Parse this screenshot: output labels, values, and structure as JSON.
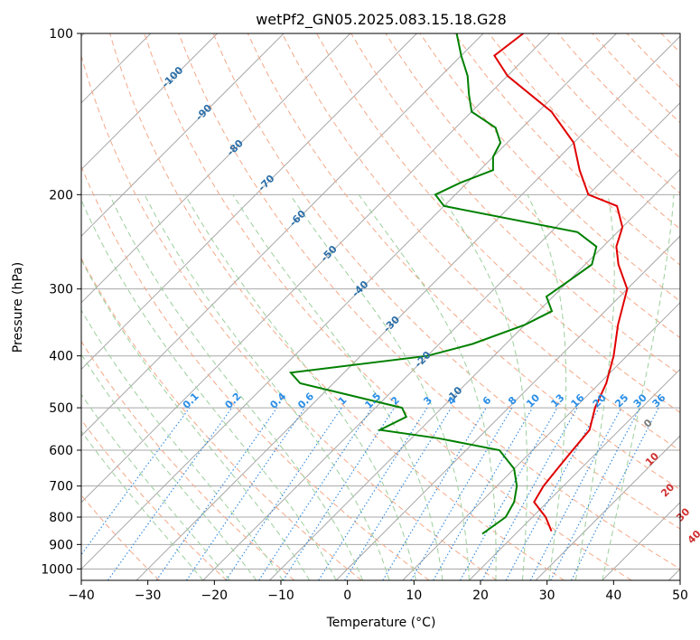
{
  "chart_data": {
    "type": "line",
    "title": "wetPf2_GN05.2025.083.15.18.G28",
    "xlabel": "Temperature (°C)",
    "ylabel": "Pressure (hPa)",
    "xlim": [
      -40,
      50
    ],
    "ylim": [
      1050,
      100
    ],
    "yscale": "log",
    "x_ticks": [
      -40,
      -30,
      -20,
      -10,
      0,
      10,
      20,
      30,
      40,
      50
    ],
    "y_ticks": [
      100,
      200,
      300,
      400,
      500,
      600,
      700,
      800,
      900,
      1000
    ],
    "grid": true,
    "skew": true,
    "colors": {
      "temperature": "#e00000",
      "dewpoint": "#008000",
      "isotherm": "#a8a8a8",
      "dry_adiabat": "#f4a888",
      "moist_adiabat": "#9ccf9c",
      "mixing_ratio": "#3a8ee0",
      "isotherm_label": "#2a6ea8",
      "mixing_ratio_label": "#2a8ee6",
      "dry_adiabat_label": "#d03030",
      "moist_adiabat_label": "#7a7a7a"
    },
    "series": [
      {
        "key": "temperature",
        "points": [
          [
            25,
            850
          ],
          [
            22,
            800
          ],
          [
            18,
            750
          ],
          [
            17,
            700
          ],
          [
            16.5,
            650
          ],
          [
            16,
            600
          ],
          [
            15.5,
            550
          ],
          [
            13,
            500
          ],
          [
            11,
            450
          ],
          [
            8,
            400
          ],
          [
            4,
            350
          ],
          [
            0,
            300
          ],
          [
            -5,
            270
          ],
          [
            -8,
            250
          ],
          [
            -10,
            230
          ],
          [
            -14,
            210
          ],
          [
            -20,
            200
          ],
          [
            -25,
            180
          ],
          [
            -30,
            160
          ],
          [
            -38,
            140
          ],
          [
            -50,
            120
          ],
          [
            -55,
            110
          ],
          [
            -54,
            100
          ]
        ]
      },
      {
        "key": "dewpoint",
        "points": [
          [
            15,
            860
          ],
          [
            16,
            800
          ],
          [
            15,
            750
          ],
          [
            13,
            700
          ],
          [
            10,
            650
          ],
          [
            5,
            600
          ],
          [
            -6,
            570
          ],
          [
            -16,
            550
          ],
          [
            -14,
            520
          ],
          [
            -16,
            500
          ],
          [
            -35,
            450
          ],
          [
            -38,
            430
          ],
          [
            -20,
            400
          ],
          [
            -15,
            380
          ],
          [
            -10,
            350
          ],
          [
            -8,
            330
          ],
          [
            -11,
            310
          ],
          [
            -10,
            290
          ],
          [
            -9,
            270
          ],
          [
            -11,
            250
          ],
          [
            -16,
            235
          ],
          [
            -40,
            210
          ],
          [
            -43,
            200
          ],
          [
            -41,
            190
          ],
          [
            -38,
            180
          ],
          [
            -40,
            170
          ],
          [
            -41,
            160
          ],
          [
            -44,
            150
          ],
          [
            -50,
            140
          ],
          [
            -53,
            130
          ],
          [
            -56,
            120
          ],
          [
            -60,
            110
          ],
          [
            -64,
            100
          ]
        ]
      }
    ],
    "isotherm_labels": [
      "-100",
      "-90",
      "-80",
      "-70",
      "-60",
      "-50",
      "-40",
      "-30",
      "-20",
      "-10"
    ],
    "mixing_ratio_labels": [
      "0.1",
      "0.2",
      "0.4",
      "0.6",
      "1",
      "1.5",
      "2",
      "3",
      "4",
      "6",
      "8",
      "10",
      "13",
      "16",
      "20",
      "25",
      "30",
      "36"
    ],
    "dry_adiabat_labels": [
      "10",
      "20",
      "30",
      "40"
    ],
    "moist_adiabat_labels": [
      "0"
    ]
  }
}
